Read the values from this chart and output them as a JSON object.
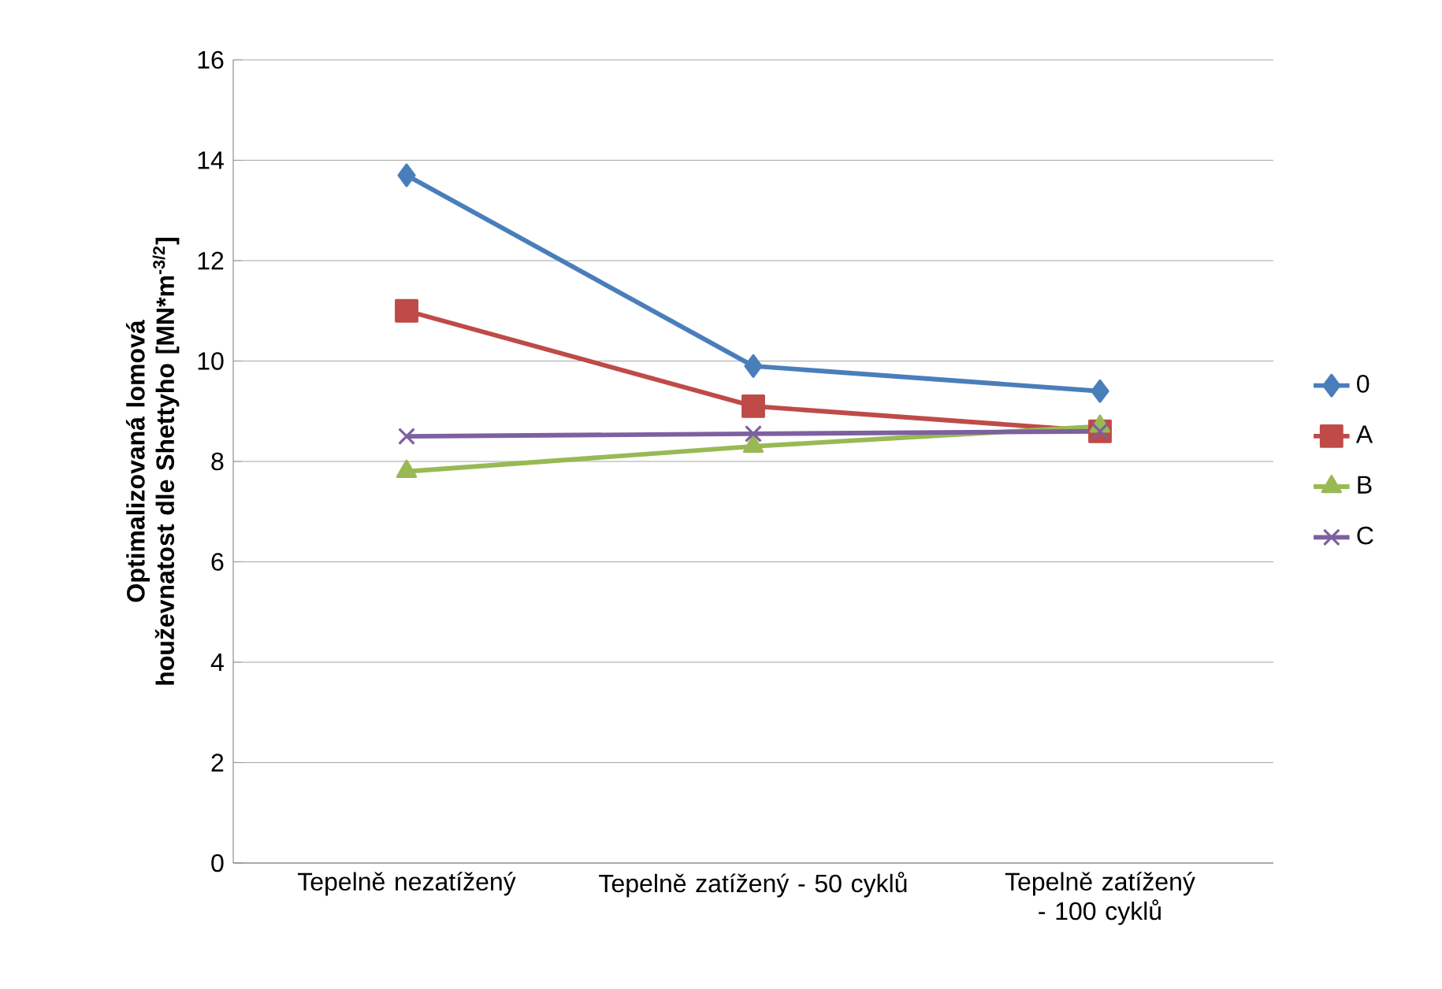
{
  "chart_data": {
    "type": "line",
    "ylabel": "Optimalizovaná lomová houževnatost dle Shettyho [MN*m$^{-3/2}$]",
    "categories": [
      "Tepelně nezatížený",
      "Tepelně zatížený - 50 cyklů",
      "Tepelně zatížený - 100 cyklů"
    ],
    "series": [
      {
        "name": "0",
        "color": "#4a7ebb",
        "marker": "diamond",
        "values": [
          13.7,
          9.9,
          9.4
        ]
      },
      {
        "name": "A",
        "color": "#be4b48",
        "marker": "square",
        "values": [
          11.0,
          9.1,
          8.6
        ]
      },
      {
        "name": "B",
        "color": "#98b954",
        "marker": "triangle",
        "values": [
          7.8,
          8.3,
          8.7
        ]
      },
      {
        "name": "C",
        "color": "#7d60a0",
        "marker": "cross",
        "values": [
          8.5,
          8.55,
          8.6
        ]
      }
    ],
    "ylim": [
      0,
      16
    ],
    "yticks": [
      0,
      2,
      4,
      6,
      8,
      10,
      12,
      14,
      16
    ],
    "grid": "y",
    "legend": "right",
    "line_style": "solid"
  }
}
